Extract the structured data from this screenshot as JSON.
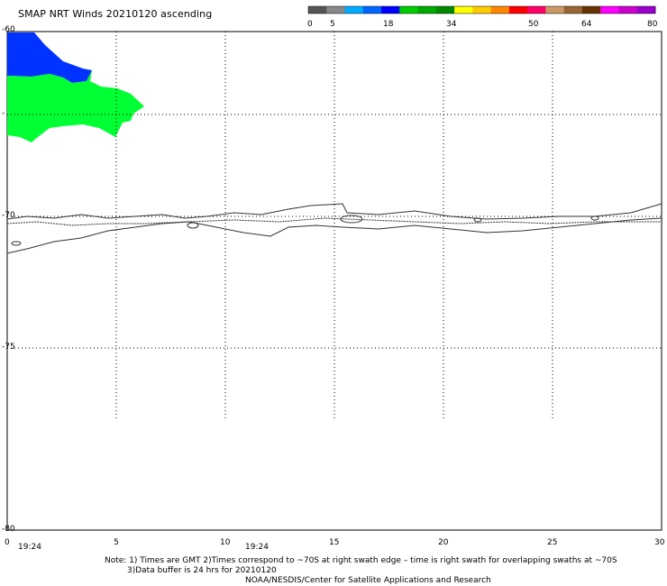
{
  "title": "SMAP NRT Winds 20210120 ascending",
  "colorbar": {
    "ticks": [
      "0",
      "5",
      "18",
      "34",
      "50",
      "64",
      "80"
    ],
    "colors": [
      "#555555",
      "#888888",
      "#00aaff",
      "#0066ff",
      "#0000ff",
      "#00cc00",
      "#00aa00",
      "#008800",
      "#ffff00",
      "#ffcc00",
      "#ff8800",
      "#ff0000",
      "#ff0066",
      "#cc9966",
      "#996633",
      "#663300",
      "#ff00ff",
      "#cc00cc",
      "#9900cc"
    ]
  },
  "axes": {
    "x_ticks": [
      "0",
      "5",
      "10",
      "15",
      "20",
      "25",
      "30"
    ],
    "y_ticks": [
      "-80",
      "-75",
      "-70",
      "-65",
      "-60"
    ],
    "y_tick_labels_shown": [
      "-60",
      "-",
      "-70",
      "-75",
      "-80"
    ],
    "time_labels": [
      "19:24",
      "19:24"
    ]
  },
  "wind_colors": {
    "blue": "#0033ff",
    "green": "#00ff33"
  },
  "notes": {
    "line1": "Note: 1) Times are GMT 2)Times correspond to ~70S at right swath edge – time is right swath for overlapping swaths at ~70S",
    "line2": "3)Data buffer is 24 hrs for 20210120",
    "line3": "NOAA/NESDIS/Center for Satellite Applications and Research"
  }
}
